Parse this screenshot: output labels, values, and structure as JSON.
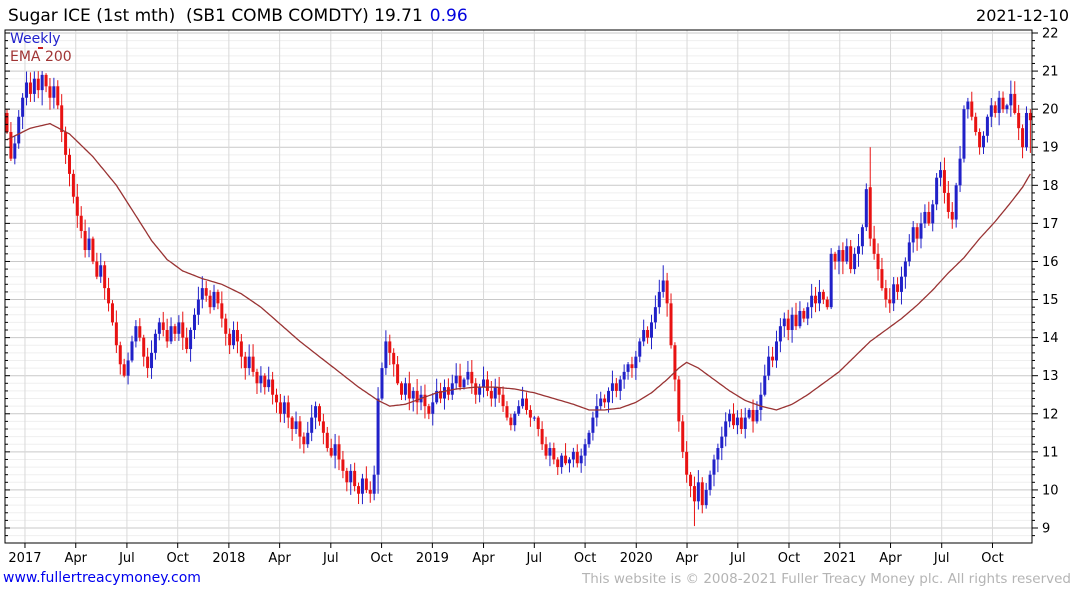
{
  "header": {
    "instrument": "Sugar ICE (1st mth)  (SB1 COMB COMDTY)",
    "price": "19.71",
    "change": "0.96",
    "date": "2021-12-10"
  },
  "legend": {
    "period": "Weekly",
    "overlay": "EMA 200"
  },
  "footer": {
    "site": "www.fullertreacymoney.com",
    "copyright": "This website is © 2008-2021 Fuller Treacy Money plc. All rights reserved"
  },
  "chart_data": {
    "type": "candlestick",
    "title": "Sugar ICE (1st mth) (SB1 COMB COMDTY)",
    "interval": "weekly",
    "overlay": "EMA 200",
    "ylim": [
      8.6,
      22.1
    ],
    "y_ticks": [
      9,
      10,
      11,
      12,
      13,
      14,
      15,
      16,
      17,
      18,
      19,
      20,
      21,
      22
    ],
    "y_minor_step": 0.2,
    "grid": true,
    "x_ticks": [
      {
        "label": "2017",
        "w": 4.6
      },
      {
        "label": "Apr",
        "w": 17.6
      },
      {
        "label": "Jul",
        "w": 30.7
      },
      {
        "label": "Oct",
        "w": 43.7
      },
      {
        "label": "2018",
        "w": 56.8
      },
      {
        "label": "Apr",
        "w": 69.8
      },
      {
        "label": "Jul",
        "w": 82.9
      },
      {
        "label": "Oct",
        "w": 95.9
      },
      {
        "label": "2019",
        "w": 108.9
      },
      {
        "label": "Apr",
        "w": 122.0
      },
      {
        "label": "Jul",
        "w": 135.0
      },
      {
        "label": "Oct",
        "w": 148.0
      },
      {
        "label": "2020",
        "w": 161.1
      },
      {
        "label": "Apr",
        "w": 174.1
      },
      {
        "label": "Jul",
        "w": 187.1
      },
      {
        "label": "Oct",
        "w": 200.2
      },
      {
        "label": "2021",
        "w": 213.2
      },
      {
        "label": "Apr",
        "w": 226.2
      },
      {
        "label": "Jul",
        "w": 239.3
      },
      {
        "label": "Oct",
        "w": 252.3
      }
    ],
    "closes": [
      19.4,
      18.7,
      19.1,
      19.8,
      20.3,
      20.7,
      20.4,
      20.8,
      20.5,
      20.9,
      20.6,
      20.3,
      20.6,
      20.1,
      19.4,
      18.8,
      18.3,
      17.7,
      17.2,
      16.8,
      16.3,
      16.6,
      16.0,
      15.6,
      15.9,
      15.3,
      14.9,
      14.4,
      13.8,
      13.3,
      13.0,
      13.4,
      13.9,
      14.3,
      14.0,
      13.5,
      13.2,
      13.6,
      14.1,
      14.4,
      14.2,
      13.9,
      14.3,
      14.1,
      14.4,
      14.0,
      13.7,
      14.2,
      14.6,
      15.0,
      15.3,
      15.1,
      14.8,
      15.2,
      14.9,
      14.5,
      14.1,
      13.8,
      14.2,
      13.9,
      13.5,
      13.2,
      13.5,
      13.1,
      12.8,
      13.0,
      12.7,
      12.9,
      12.5,
      12.3,
      12.0,
      12.3,
      11.9,
      11.6,
      11.8,
      11.4,
      11.2,
      11.5,
      11.9,
      12.2,
      11.8,
      11.5,
      11.1,
      10.9,
      11.2,
      10.8,
      10.5,
      10.2,
      10.5,
      10.1,
      9.9,
      10.3,
      10.0,
      9.9,
      10.4,
      12.4,
      13.2,
      13.9,
      13.6,
      13.3,
      12.8,
      12.5,
      12.8,
      12.4,
      12.6,
      12.3,
      12.5,
      12.2,
      12.0,
      12.3,
      12.6,
      12.4,
      12.7,
      12.5,
      12.8,
      13.0,
      12.7,
      12.9,
      13.1,
      12.8,
      12.5,
      12.7,
      12.9,
      12.6,
      12.4,
      12.7,
      12.5,
      12.2,
      11.9,
      11.7,
      12.0,
      12.2,
      12.4,
      12.1,
      11.9,
      11.9,
      11.6,
      11.2,
      10.9,
      11.1,
      10.8,
      10.6,
      10.9,
      10.7,
      10.8,
      11.0,
      10.7,
      10.9,
      11.2,
      11.5,
      11.9,
      12.2,
      12.4,
      12.3,
      12.6,
      12.8,
      12.6,
      12.9,
      13.1,
      13.3,
      13.2,
      13.5,
      13.9,
      14.2,
      14.0,
      14.4,
      14.8,
      15.2,
      15.5,
      14.9,
      13.8,
      12.9,
      11.8,
      11.0,
      10.4,
      10.1,
      9.7,
      10.2,
      9.6,
      10.0,
      10.4,
      10.8,
      11.1,
      11.4,
      11.8,
      12.0,
      11.7,
      11.9,
      11.6,
      11.9,
      12.1,
      11.8,
      12.1,
      12.5,
      13.0,
      13.5,
      13.4,
      13.9,
      14.3,
      14.5,
      14.2,
      14.6,
      14.3,
      14.7,
      14.5,
      14.8,
      15.1,
      14.9,
      15.2,
      15.0,
      14.8,
      16.2,
      16.0,
      16.3,
      16.0,
      16.4,
      15.8,
      16.2,
      16.4,
      16.9,
      17.9,
      16.6,
      16.2,
      15.8,
      15.3,
      15.0,
      14.9,
      15.4,
      15.2,
      15.6,
      16.0,
      16.5,
      16.9,
      16.6,
      17.0,
      17.3,
      17.0,
      17.5,
      18.2,
      18.4,
      17.8,
      17.3,
      17.1,
      18.0,
      18.7,
      20.0,
      20.2,
      19.8,
      19.4,
      19.0,
      19.3,
      19.8,
      20.1,
      19.9,
      20.3,
      20.0,
      20.1,
      20.4,
      19.9,
      19.5,
      19.0,
      19.9,
      19.71
    ],
    "ohlc_overrides": {
      "9": [
        20.5,
        21.0,
        20.1,
        20.9
      ],
      "95": [
        10.4,
        12.7,
        9.9,
        12.4
      ],
      "168": [
        15.2,
        15.9,
        15.05,
        15.5
      ],
      "169": [
        15.5,
        15.7,
        14.55,
        14.9
      ],
      "176": [
        10.1,
        10.35,
        9.05,
        9.7
      ],
      "211": [
        14.8,
        16.35,
        14.75,
        16.2
      ],
      "220": [
        16.9,
        18.05,
        16.8,
        17.9
      ],
      "221": [
        17.95,
        19.0,
        16.4,
        16.6
      ],
      "226": [
        15.0,
        15.3,
        14.65,
        14.9
      ],
      "245": [
        18.7,
        20.1,
        18.6,
        20.0
      ],
      "257": [
        20.1,
        20.75,
        19.8,
        20.4
      ],
      "262": [
        19.9,
        20.0,
        18.85,
        19.71
      ]
    },
    "ema_anchors": [
      [
        0,
        19.2
      ],
      [
        6,
        19.5
      ],
      [
        11,
        19.62
      ],
      [
        16,
        19.35
      ],
      [
        22,
        18.75
      ],
      [
        28,
        18.0
      ],
      [
        33,
        17.2
      ],
      [
        37,
        16.55
      ],
      [
        41,
        16.05
      ],
      [
        45,
        15.75
      ],
      [
        50,
        15.55
      ],
      [
        55,
        15.4
      ],
      [
        60,
        15.15
      ],
      [
        65,
        14.8
      ],
      [
        70,
        14.35
      ],
      [
        75,
        13.9
      ],
      [
        80,
        13.5
      ],
      [
        85,
        13.1
      ],
      [
        90,
        12.7
      ],
      [
        95,
        12.35
      ],
      [
        98,
        12.2
      ],
      [
        102,
        12.25
      ],
      [
        106,
        12.4
      ],
      [
        110,
        12.55
      ],
      [
        115,
        12.65
      ],
      [
        120,
        12.7
      ],
      [
        125,
        12.7
      ],
      [
        130,
        12.65
      ],
      [
        135,
        12.55
      ],
      [
        140,
        12.4
      ],
      [
        145,
        12.25
      ],
      [
        149,
        12.1
      ],
      [
        153,
        12.1
      ],
      [
        157,
        12.15
      ],
      [
        161,
        12.3
      ],
      [
        165,
        12.55
      ],
      [
        169,
        12.9
      ],
      [
        172,
        13.2
      ],
      [
        174,
        13.35
      ],
      [
        177,
        13.2
      ],
      [
        181,
        12.9
      ],
      [
        185,
        12.6
      ],
      [
        189,
        12.35
      ],
      [
        193,
        12.2
      ],
      [
        197,
        12.1
      ],
      [
        201,
        12.25
      ],
      [
        205,
        12.5
      ],
      [
        209,
        12.8
      ],
      [
        213,
        13.1
      ],
      [
        217,
        13.5
      ],
      [
        221,
        13.9
      ],
      [
        225,
        14.2
      ],
      [
        229,
        14.5
      ],
      [
        233,
        14.85
      ],
      [
        237,
        15.25
      ],
      [
        241,
        15.7
      ],
      [
        245,
        16.1
      ],
      [
        249,
        16.6
      ],
      [
        253,
        17.05
      ],
      [
        257,
        17.55
      ],
      [
        260,
        17.95
      ],
      [
        262,
        18.3
      ]
    ],
    "colors": {
      "up": "#2121c8",
      "down": "#e81212",
      "ema": "#993333",
      "grid_major": "#c9c9c9",
      "grid_minor": "#efefef",
      "grid_vertical": "#d9d9d9",
      "axis": "#000000"
    }
  }
}
